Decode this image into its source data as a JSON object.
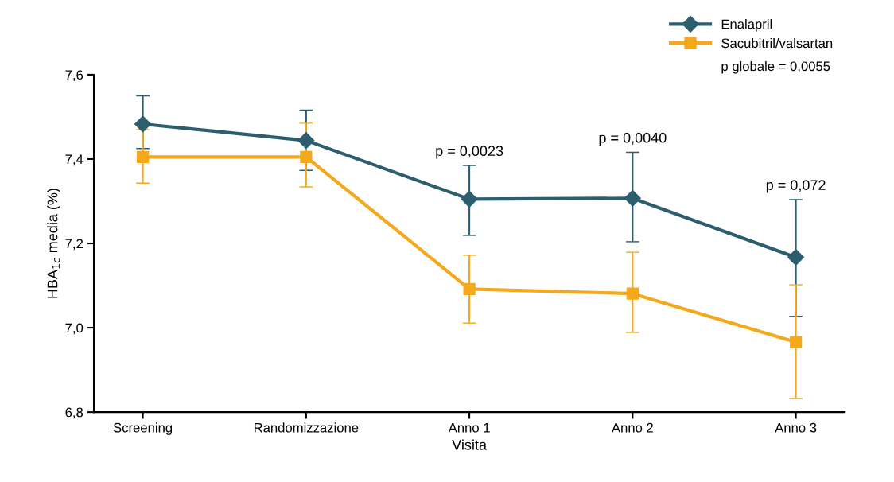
{
  "chart_data": {
    "type": "line",
    "xlabel": "Visita",
    "ylabel": "HBA$_{1c}$ media (%)",
    "categories": [
      "Screening",
      "Randomizzazione",
      "Anno 1",
      "Anno 2",
      "Anno 3"
    ],
    "ylim": [
      6.8,
      7.6
    ],
    "yticks": [
      {
        "value": 6.8,
        "label": "6,8"
      },
      {
        "value": 7.0,
        "label": "7,0"
      },
      {
        "value": 7.2,
        "label": "7,2"
      },
      {
        "value": 7.4,
        "label": "7,4"
      },
      {
        "value": 7.6,
        "label": "7,6"
      }
    ],
    "series": [
      {
        "name": "Enalapril",
        "color": "#2d5e6e",
        "marker": "diamond",
        "values": [
          7.483,
          7.444,
          7.305,
          7.307,
          7.167
        ],
        "errors": [
          [
            7.425,
            7.55
          ],
          [
            7.373,
            7.516
          ],
          [
            7.219,
            7.385
          ],
          [
            7.204,
            7.416
          ],
          [
            7.027,
            7.304
          ]
        ]
      },
      {
        "name": "Sacubitril/valsartan",
        "color": "#f5a81c",
        "marker": "square",
        "values": [
          7.405,
          7.405,
          7.092,
          7.081,
          6.966
        ],
        "errors": [
          [
            7.343,
            7.47
          ],
          [
            7.334,
            7.485
          ],
          [
            7.011,
            7.172
          ],
          [
            6.989,
            7.179
          ],
          [
            6.832,
            7.102
          ]
        ]
      }
    ],
    "annotations": [
      "p = 0,0023",
      "p = 0,0040",
      "p = 0,072",
      "p globale = 0,0055"
    ],
    "legend": "top right",
    "grid": false
  }
}
